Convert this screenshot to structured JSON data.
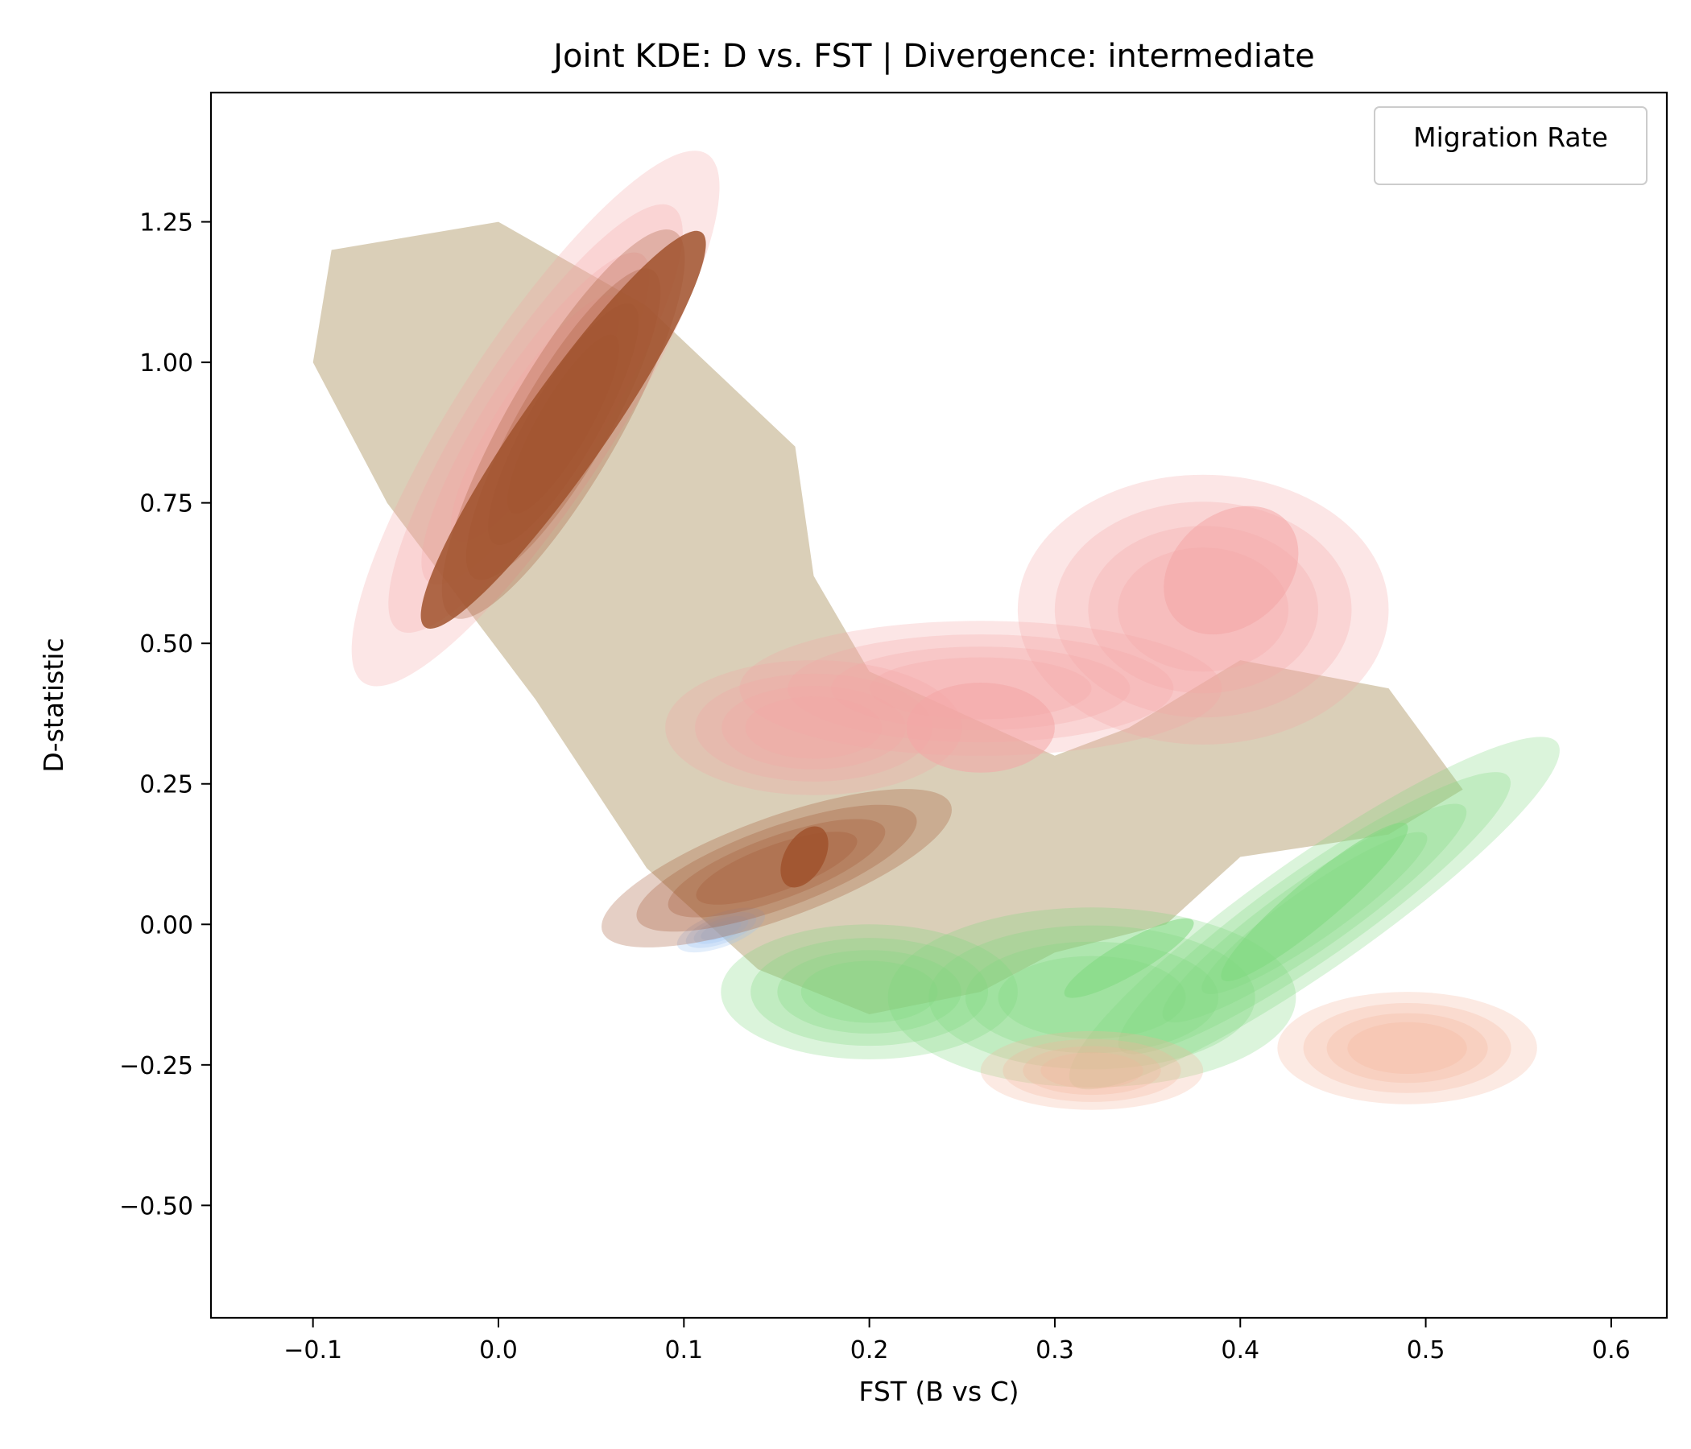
{
  "chart_data": {
    "type": "kde_contour",
    "title": "Joint KDE: D vs. FST | Divergence: intermediate",
    "xlabel": "FST (B vs C)",
    "ylabel": "D-statistic",
    "xlim": [
      -0.155,
      0.63
    ],
    "ylim": [
      -0.7,
      1.48
    ],
    "xticks": [
      -0.1,
      0.0,
      0.1,
      0.2,
      0.3,
      0.4,
      0.5,
      0.6
    ],
    "xtick_labels": [
      "−0.1",
      "0.0",
      "0.1",
      "0.2",
      "0.3",
      "0.4",
      "0.5",
      "0.6"
    ],
    "yticks": [
      -0.5,
      -0.25,
      0.0,
      0.25,
      0.5,
      0.75,
      1.0,
      1.25
    ],
    "ytick_labels": [
      "−0.50",
      "−0.25",
      "0.00",
      "0.25",
      "0.50",
      "0.75",
      "1.00",
      "1.25"
    ],
    "grid": false,
    "legend": {
      "title": "Migration Rate",
      "position": "top-right"
    },
    "series": [
      {
        "color": "#f4a6a6",
        "blobs": [
          {
            "cx": 0.02,
            "cy": 0.9,
            "rx": 0.17,
            "ry": 0.14,
            "rot": -57
          },
          {
            "cx": 0.38,
            "cy": 0.56,
            "rx": 0.1,
            "ry": 0.24,
            "rot": 0
          },
          {
            "cx": 0.26,
            "cy": 0.42,
            "rx": 0.13,
            "ry": 0.12,
            "rot": 0
          },
          {
            "cx": 0.17,
            "cy": 0.35,
            "rx": 0.08,
            "ry": 0.12,
            "rot": 0
          }
        ],
        "cores": [
          {
            "cx": 0.395,
            "cy": 0.63,
            "rx": 0.04,
            "ry": 0.1,
            "rot": -40
          },
          {
            "cx": 0.26,
            "cy": 0.35,
            "rx": 0.04,
            "ry": 0.08,
            "rot": 0
          }
        ]
      },
      {
        "color": "#7fd97f",
        "blobs": [
          {
            "cx": 0.44,
            "cy": 0.02,
            "rx": 0.16,
            "ry": 0.1,
            "rot": -35
          },
          {
            "cx": 0.32,
            "cy": -0.13,
            "rx": 0.11,
            "ry": 0.16,
            "rot": 0
          },
          {
            "cx": 0.2,
            "cy": -0.12,
            "rx": 0.08,
            "ry": 0.12,
            "rot": 0
          }
        ],
        "cores": [
          {
            "cx": 0.44,
            "cy": 0.04,
            "rx": 0.065,
            "ry": 0.04,
            "rot": -40
          },
          {
            "cx": 0.34,
            "cy": -0.06,
            "rx": 0.04,
            "ry": 0.03,
            "rot": -30
          }
        ]
      },
      {
        "color": "#f5b49a",
        "blobs": [
          {
            "cx": 0.49,
            "cy": -0.22,
            "rx": 0.07,
            "ry": 0.1,
            "rot": 0
          },
          {
            "cx": 0.32,
            "cy": -0.26,
            "rx": 0.06,
            "ry": 0.07,
            "rot": 0
          }
        ],
        "cores": []
      },
      {
        "color": "#9cc3f0",
        "blobs": [
          {
            "cx": 0.12,
            "cy": -0.01,
            "rx": 0.025,
            "ry": 0.03,
            "rot": -20
          }
        ],
        "cores": []
      },
      {
        "color": "#a0522d",
        "blobs": [
          {
            "cx": 0.035,
            "cy": 0.89,
            "rx": 0.12,
            "ry": 0.1,
            "rot": -60
          },
          {
            "cx": 0.15,
            "cy": 0.1,
            "rx": 0.1,
            "ry": 0.09,
            "rot": -20
          }
        ],
        "cores": [
          {
            "cx": 0.035,
            "cy": 0.88,
            "rx": 0.13,
            "ry": 0.075,
            "rot": -55
          },
          {
            "cx": 0.165,
            "cy": 0.12,
            "rx": 0.018,
            "ry": 0.035,
            "rot": -60
          }
        ]
      }
    ],
    "background_region": {
      "color": "#cdbfa0"
    }
  }
}
